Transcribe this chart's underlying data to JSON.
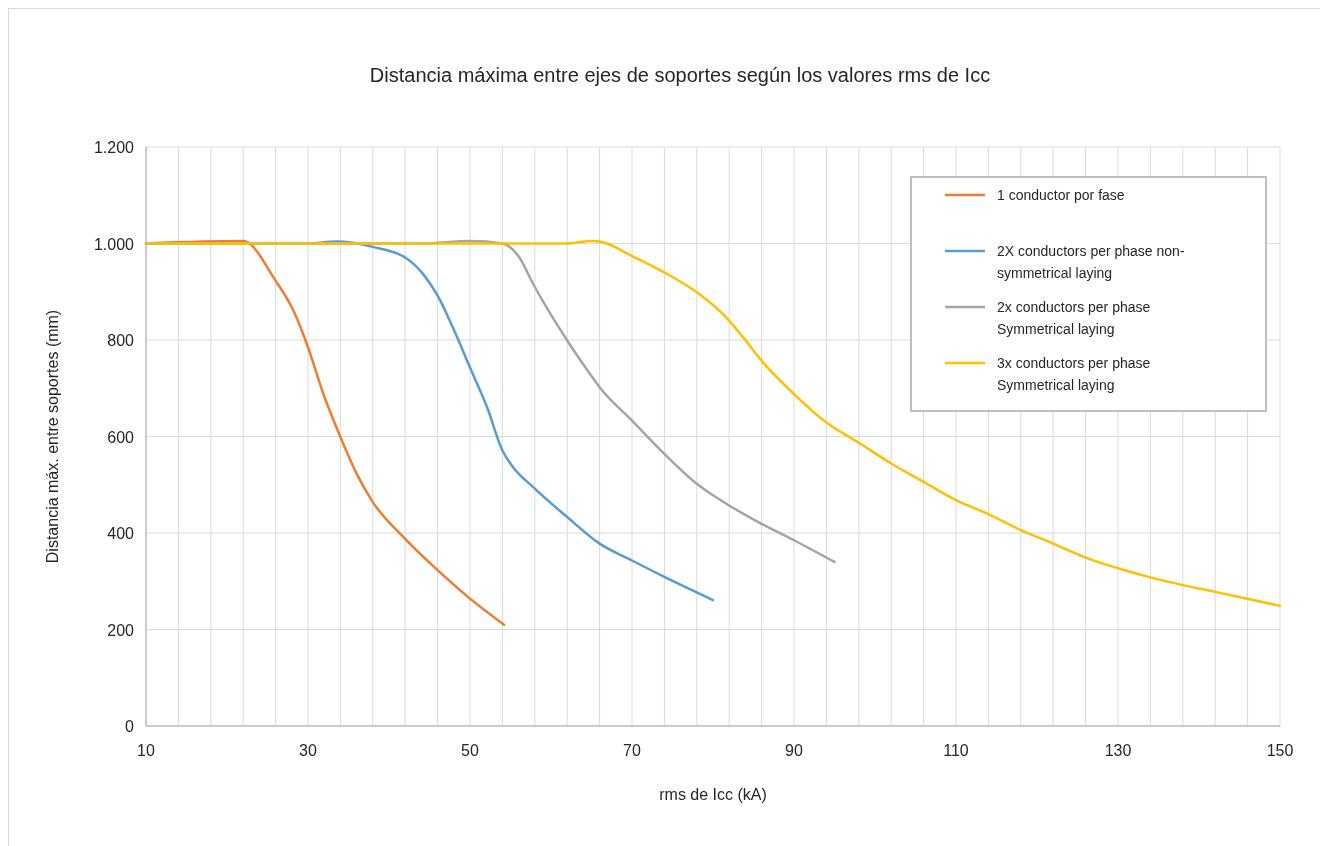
{
  "chart_data": {
    "type": "line",
    "title": "Distancia máxima entre ejes de soportes según los valores rms de Icc",
    "xlabel": "rms de Icc (kA)",
    "ylabel": "Distancia máx. entre soportes (mm)",
    "xlim": [
      10,
      150
    ],
    "xticks": [
      10,
      {
        "value": 14,
        "label": null
      },
      {
        "value": 18,
        "label": null
      },
      {
        "value": 22,
        "label": null
      },
      {
        "value": 26,
        "label": null
      },
      30,
      {
        "value": 34,
        "label": null
      },
      {
        "value": 38,
        "label": null
      },
      {
        "value": 42,
        "label": null
      },
      {
        "value": 46,
        "label": null
      },
      50,
      {
        "value": 54,
        "label": null
      },
      {
        "value": 58,
        "label": null
      },
      {
        "value": 62,
        "label": null
      },
      {
        "value": 66,
        "label": null
      },
      70,
      {
        "value": 74,
        "label": null
      },
      {
        "value": 78,
        "label": null
      },
      {
        "value": 82,
        "label": null
      },
      {
        "value": 86,
        "label": null
      },
      90,
      {
        "value": 94,
        "label": null
      },
      {
        "value": 98,
        "label": null
      },
      {
        "value": 102,
        "label": null
      },
      {
        "value": 106,
        "label": null
      },
      110,
      {
        "value": 114,
        "label": null
      },
      {
        "value": 118,
        "label": null
      },
      {
        "value": 122,
        "label": null
      },
      {
        "value": 126,
        "label": null
      },
      130,
      {
        "value": 134,
        "label": null
      },
      {
        "value": 138,
        "label": null
      },
      {
        "value": 142,
        "label": null
      },
      {
        "value": 146,
        "label": null
      },
      150
    ],
    "ylim": [
      0,
      1200
    ],
    "yticks": [
      0,
      200,
      400,
      600,
      800,
      {
        "value": 1000,
        "label": "1.000"
      },
      {
        "value": 1200,
        "label": "1.200"
      }
    ],
    "grid": true,
    "legend": "top right",
    "marker": "none",
    "line_style": "solid",
    "series": [
      {
        "name": "1 conductor por fase",
        "color": "#ed7d31",
        "x": [
          10,
          22,
          26,
          28.2,
          30,
          31.9,
          34,
          36,
          38,
          42,
          46,
          50,
          54.2
        ],
        "values": [
          1000,
          1005,
          923,
          861,
          785,
          688,
          599,
          523,
          464,
          388,
          323,
          264,
          210
        ]
      },
      {
        "name": "2X conductors per phase non-symmetrical laying",
        "color": "#5b9bd5",
        "x": [
          10,
          30,
          33.5,
          38,
          42,
          44.2,
          46,
          48.4,
          50,
          52.1,
          54,
          55.3,
          57.8,
          62,
          66,
          70,
          74,
          80
        ],
        "values": [
          1000,
          1000,
          1004,
          993,
          971,
          937,
          892,
          806,
          743,
          661,
          571,
          537,
          495,
          433,
          378,
          343,
          309,
          261
        ]
      },
      {
        "name": "2x conductors per phase Symmetrical laying",
        "color": "#a5a5a5",
        "x": [
          10,
          44,
          50,
          54,
          56.1,
          57.8,
          62,
          64.8,
          66,
          70,
          74,
          78,
          82,
          86,
          90,
          95
        ],
        "values": [
          1000,
          1000,
          1005,
          1000,
          971,
          916,
          799,
          730,
          702,
          633,
          564,
          502,
          457,
          419,
          385,
          340
        ]
      },
      {
        "name": "3x conductors per phase Symmetrical laying",
        "color": "#ffc000",
        "x": [
          10,
          62,
          65,
          66,
          70,
          74,
          78,
          81.2,
          83.7,
          86,
          90,
          94,
          98,
          102,
          106,
          110,
          114,
          118,
          122,
          126,
          130,
          134,
          138,
          142,
          150
        ],
        "values": [
          1000,
          1000,
          1005,
          1004,
          974,
          940,
          899,
          854,
          806,
          757,
          688,
          629,
          587,
          544,
          506,
          468,
          439,
          406,
          378,
          349,
          327,
          308,
          292,
          278,
          249
        ]
      }
    ]
  }
}
